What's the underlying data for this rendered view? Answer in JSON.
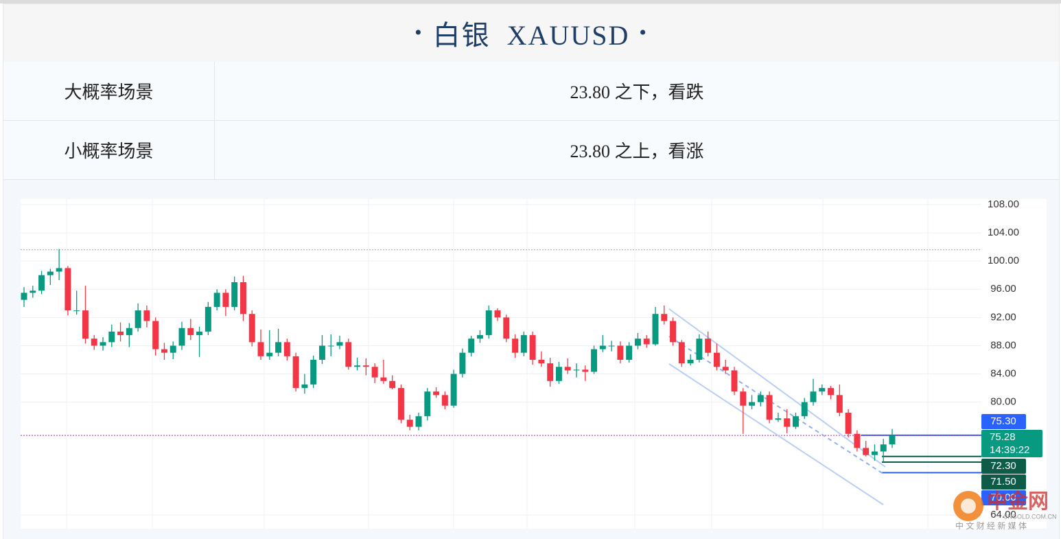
{
  "header": {
    "bullet_left": "•",
    "title": "白银  XAUUSD",
    "bullet_right": "•"
  },
  "table": {
    "rows": [
      [
        "大概率场景",
        "23.80 之下，看跌"
      ],
      [
        "小概率场景",
        "23.80 之上，看涨"
      ]
    ]
  },
  "chart_data": {
    "type": "candlestick",
    "up_color": "#089981",
    "down_color": "#f23645",
    "ylim": [
      64,
      108
    ],
    "yticks": [
      {
        "value": 108,
        "label": "108.00"
      },
      {
        "value": 104,
        "label": "104.00"
      },
      {
        "value": 100,
        "label": "100.00"
      },
      {
        "value": 96,
        "label": "96.00"
      },
      {
        "value": 92,
        "label": "92.00"
      },
      {
        "value": 88,
        "label": "88.00"
      },
      {
        "value": 84,
        "label": "84.00"
      },
      {
        "value": 80,
        "label": "80.00"
      },
      {
        "value": 64,
        "label": "64.00"
      }
    ],
    "grid": true,
    "candles": [
      [
        94.5,
        96.3,
        93.5,
        95.5
      ],
      [
        95.5,
        96.5,
        94.8,
        95.8
      ],
      [
        95.8,
        98.6,
        95.3,
        98
      ],
      [
        98,
        98.9,
        96.6,
        98.5
      ],
      [
        98.5,
        101.7,
        97.3,
        99
      ],
      [
        99,
        99.3,
        92.3,
        93
      ],
      [
        93,
        95.8,
        92.4,
        93
      ],
      [
        93,
        96.5,
        88.3,
        89
      ],
      [
        89,
        89.5,
        87.4,
        88
      ],
      [
        88,
        89.2,
        87.3,
        88.5
      ],
      [
        88.5,
        91,
        87.8,
        90
      ],
      [
        90,
        91.3,
        88.6,
        89.5
      ],
      [
        89.5,
        91.2,
        87.8,
        90.5
      ],
      [
        90.5,
        94,
        90,
        93
      ],
      [
        93,
        93.7,
        90.6,
        91.5
      ],
      [
        91.5,
        92,
        86.6,
        87.5
      ],
      [
        87.5,
        88.4,
        86,
        87
      ],
      [
        87,
        88.6,
        86.1,
        88
      ],
      [
        88,
        91.4,
        87.4,
        90.5
      ],
      [
        90.5,
        91.8,
        88.8,
        89.5
      ],
      [
        89.5,
        90.7,
        86.4,
        90
      ],
      [
        90,
        94.2,
        89.5,
        93.5
      ],
      [
        93.5,
        96,
        93,
        95.5
      ],
      [
        95.5,
        96,
        92.2,
        93.5
      ],
      [
        93.5,
        97.8,
        93,
        97
      ],
      [
        97,
        97.9,
        91.5,
        92.5
      ],
      [
        92.5,
        93,
        87.9,
        88.5
      ],
      [
        88.5,
        90.3,
        86,
        86.5
      ],
      [
        86.5,
        90.2,
        86,
        87
      ],
      [
        87,
        90.4,
        86.5,
        88.5
      ],
      [
        88.5,
        89,
        85.9,
        86.5
      ],
      [
        86.5,
        87,
        81.5,
        82
      ],
      [
        82,
        84,
        81.2,
        82.5
      ],
      [
        82.5,
        86.6,
        82,
        86
      ],
      [
        86,
        89.5,
        85.4,
        88
      ],
      [
        88,
        89.6,
        86.5,
        88
      ],
      [
        88,
        89.4,
        87.5,
        88.5
      ],
      [
        88.5,
        89,
        84.6,
        85
      ],
      [
        85,
        86.3,
        84.5,
        85.2
      ],
      [
        85.2,
        86.2,
        83.8,
        85
      ],
      [
        85,
        85.5,
        82.7,
        83.5
      ],
      [
        83.5,
        86,
        82.6,
        83
      ],
      [
        83,
        83.8,
        81.8,
        82
      ],
      [
        82,
        82.5,
        77,
        77.5
      ],
      [
        77.5,
        78.2,
        76,
        76.5
      ],
      [
        76.5,
        78.5,
        76,
        78
      ],
      [
        78,
        82,
        77.4,
        81.5
      ],
      [
        81.5,
        82.1,
        80.6,
        81
      ],
      [
        81,
        81.5,
        79,
        79.5
      ],
      [
        79.5,
        84.6,
        79.2,
        84
      ],
      [
        84,
        87.6,
        83.5,
        87
      ],
      [
        87,
        89.4,
        86.5,
        89
      ],
      [
        89,
        90.2,
        88.4,
        89.5
      ],
      [
        89.5,
        93.7,
        89,
        93
      ],
      [
        93,
        93.3,
        91.5,
        92
      ],
      [
        92,
        92.4,
        88.5,
        89
      ],
      [
        89,
        89.6,
        86.3,
        87
      ],
      [
        87,
        90,
        86.5,
        89.5
      ],
      [
        89.5,
        90,
        85.3,
        86
      ],
      [
        86,
        87.2,
        85,
        85.5
      ],
      [
        85.5,
        86.3,
        82.2,
        83
      ],
      [
        83,
        85.7,
        82.6,
        85
      ],
      [
        85,
        86.2,
        84,
        84.5
      ],
      [
        84.5,
        85.5,
        83.5,
        84.6
      ],
      [
        84.6,
        85.2,
        83,
        84.3
      ],
      [
        84.3,
        88,
        84,
        87.5
      ],
      [
        87.5,
        89.5,
        87.1,
        88
      ],
      [
        88,
        88.7,
        87.2,
        88
      ],
      [
        88,
        88.6,
        85.5,
        86
      ],
      [
        86,
        88.5,
        85.6,
        88
      ],
      [
        88,
        89.8,
        87.5,
        89
      ],
      [
        89,
        89.5,
        87.7,
        88.2
      ],
      [
        88.2,
        93.5,
        88,
        92.5
      ],
      [
        92.5,
        93.7,
        91,
        91.5
      ],
      [
        91.5,
        92,
        88,
        88.5
      ],
      [
        88.5,
        88.8,
        85,
        85.5
      ],
      [
        85.5,
        86.8,
        85.2,
        86
      ],
      [
        86,
        89.6,
        85.6,
        89
      ],
      [
        89,
        90,
        86.5,
        87
      ],
      [
        87,
        88.3,
        84.5,
        85
      ],
      [
        85,
        86,
        84,
        84.5
      ],
      [
        84.5,
        85,
        81,
        81.5
      ],
      [
        81.5,
        82,
        75.5,
        79.5
      ],
      [
        79.5,
        81,
        79,
        80
      ],
      [
        80,
        81.5,
        79.4,
        81
      ],
      [
        81,
        81.5,
        77,
        77.5
      ],
      [
        77.5,
        78.5,
        77.2,
        77.7
      ],
      [
        77.7,
        79,
        75.6,
        76.5
      ],
      [
        76.5,
        78.5,
        76.2,
        78
      ],
      [
        78,
        80.6,
        77.6,
        80
      ],
      [
        80,
        83.3,
        79.5,
        81.5
      ],
      [
        81.5,
        82.5,
        81,
        82
      ],
      [
        82,
        82.3,
        80.4,
        81
      ],
      [
        81,
        82.5,
        78,
        78.5
      ],
      [
        78.5,
        79,
        75,
        75.5
      ],
      [
        75.5,
        76,
        73,
        73.5
      ],
      [
        73.5,
        74.5,
        72.3,
        72.5
      ],
      [
        72.5,
        74,
        71.7,
        73
      ],
      [
        73,
        74.8,
        71.5,
        74
      ],
      [
        74,
        76.2,
        73.5,
        75.28
      ]
    ],
    "reference_lines": [
      101.6
    ],
    "price_levels": [
      {
        "value": 75.3,
        "label": "75.30",
        "color": "#2962ff"
      },
      {
        "value": 75.28,
        "label": "75.28",
        "time": "14:39:22",
        "color": "#089981"
      },
      {
        "value": 72.3,
        "label": "72.30",
        "color": "#0e5c48"
      },
      {
        "value": 71.5,
        "label": "71.50",
        "color": "#0e5c48"
      },
      {
        "value": 70,
        "label": "70.00",
        "color": "#2962ff"
      }
    ],
    "watermark": {
      "brand": "中金网",
      "site": "CNGOLD.COM.CN",
      "slogan": "中 文 财 经 新 媒 体"
    }
  }
}
